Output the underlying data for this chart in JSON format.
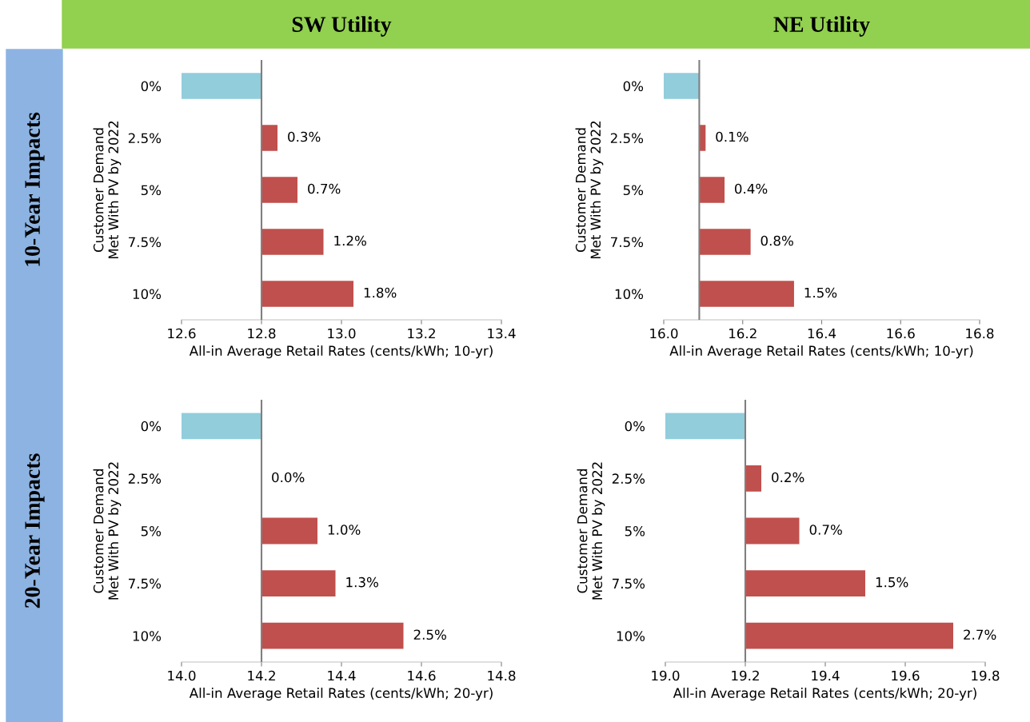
{
  "chart_data": [
    {
      "type": "bar",
      "orientation": "horizontal",
      "title": "SW Utility",
      "ylabel": "Customer Demand\nMet With PV by 2022",
      "xlabel": "All-in Average Retail Rates (cents/kWh; 10-yr)",
      "categories": [
        "0%",
        "2.5%",
        "5%",
        "7.5%",
        "10%"
      ],
      "base": [
        12.6,
        12.8,
        12.8,
        12.8,
        12.8
      ],
      "values": [
        0.2,
        0.04,
        0.09,
        0.155,
        0.23
      ],
      "colors": [
        "#92cddc",
        "#c0504d",
        "#c0504d",
        "#c0504d",
        "#c0504d"
      ],
      "annotations": [
        "10-Year Impacts",
        {
          "text": "0.3%",
          "x": 12.84,
          "y": "2.5%"
        },
        {
          "text": "0.7%",
          "x": 12.89,
          "y": "5%"
        },
        {
          "text": "1.2%",
          "x": 12.955,
          "y": "7.5%"
        },
        {
          "text": "1.8%",
          "x": 13.03,
          "y": "10%"
        }
      ],
      "xlim": [
        12.6,
        13.4
      ],
      "xticks": [
        {
          "value": 12.6,
          "label": "12.6"
        },
        {
          "value": 12.8,
          "label": "12.8"
        },
        {
          "value": 13.0,
          "label": "13.0"
        },
        {
          "value": 13.2,
          "label": "13.2"
        },
        {
          "value": 13.4,
          "label": "13.4"
        }
      ],
      "ref_lines": [
        {
          "axis": "x",
          "value": 12.8,
          "color": "#7f7f7f"
        }
      ]
    },
    {
      "type": "bar",
      "orientation": "horizontal",
      "title": "NE Utility",
      "ylabel": "Customer Demand\nMet With PV by 2022",
      "xlabel": "All-in Average Retail Rates (cents/kWh; 10-yr)",
      "categories": [
        "0%",
        "2.5%",
        "5%",
        "7.5%",
        "10%"
      ],
      "base": [
        16.0,
        16.09,
        16.09,
        16.09,
        16.09
      ],
      "values": [
        0.09,
        0.016,
        0.064,
        0.13,
        0.24
      ],
      "colors": [
        "#92cddc",
        "#c0504d",
        "#c0504d",
        "#c0504d",
        "#c0504d"
      ],
      "annotations": [
        {
          "text": "0.1%",
          "x": 16.106,
          "y": "2.5%"
        },
        {
          "text": "0.4%",
          "x": 16.154,
          "y": "5%"
        },
        {
          "text": "0.8%",
          "x": 16.22,
          "y": "7.5%"
        },
        {
          "text": "1.5%",
          "x": 16.33,
          "y": "10%"
        }
      ],
      "xlim": [
        16.0,
        16.8
      ],
      "xticks": [
        {
          "value": 16.0,
          "label": "16.0"
        },
        {
          "value": 16.2,
          "label": "16.2"
        },
        {
          "value": 16.4,
          "label": "16.4"
        },
        {
          "value": 16.6,
          "label": "16.6"
        },
        {
          "value": 16.8,
          "label": "16.8"
        }
      ],
      "ref_lines": [
        {
          "axis": "x",
          "value": 16.09,
          "color": "#7f7f7f"
        }
      ]
    },
    {
      "type": "bar",
      "orientation": "horizontal",
      "ylabel": "Customer Demand\nMet With PV by 2022",
      "xlabel": "All-in Average Retail Rates (cents/kWh; 20-yr)",
      "categories": [
        "0%",
        "2.5%",
        "5%",
        "7.5%",
        "10%"
      ],
      "base": [
        14.0,
        null,
        14.2,
        14.2,
        14.2
      ],
      "values": [
        0.2,
        null,
        0.14,
        0.185,
        0.355
      ],
      "colors": [
        "#92cddc",
        "#c0504d",
        "#c0504d",
        "#c0504d",
        "#c0504d"
      ],
      "annotations": [
        "20-Year Impacts",
        {
          "text": "0.0%",
          "x": 14.2,
          "y": "2.5%"
        },
        {
          "text": "1.0%",
          "x": 14.34,
          "y": "5%"
        },
        {
          "text": "1.3%",
          "x": 14.385,
          "y": "7.5%"
        },
        {
          "text": "2.5%",
          "x": 14.555,
          "y": "10%"
        }
      ],
      "xlim": [
        14.0,
        14.8
      ],
      "xticks": [
        {
          "value": 14.0,
          "label": "14.0"
        },
        {
          "value": 14.2,
          "label": "14.2"
        },
        {
          "value": 14.4,
          "label": "14.4"
        },
        {
          "value": 14.6,
          "label": "14.6"
        },
        {
          "value": 14.8,
          "label": "14.8"
        }
      ],
      "ref_lines": [
        {
          "axis": "x",
          "value": 14.2,
          "color": "#7f7f7f"
        }
      ]
    },
    {
      "type": "bar",
      "orientation": "horizontal",
      "ylabel": "Customer Demand\nMet With PV by 2022",
      "xlabel": "All-in Average Retail Rates (cents/kWh; 20-yr)",
      "categories": [
        "0%",
        "2.5%",
        "5%",
        "7.5%",
        "10%"
      ],
      "base": [
        19.0,
        19.2,
        19.2,
        19.2,
        19.2
      ],
      "values": [
        0.2,
        0.04,
        0.135,
        0.3,
        0.52
      ],
      "colors": [
        "#92cddc",
        "#c0504d",
        "#c0504d",
        "#c0504d",
        "#c0504d"
      ],
      "annotations": [
        {
          "text": "0.2%",
          "x": 19.24,
          "y": "2.5%"
        },
        {
          "text": "0.7%",
          "x": 19.335,
          "y": "5%"
        },
        {
          "text": "1.5%",
          "x": 19.5,
          "y": "7.5%"
        },
        {
          "text": "2.7%",
          "x": 19.72,
          "y": "10%"
        }
      ],
      "xlim": [
        19.0,
        19.8
      ],
      "xticks": [
        {
          "value": 19.0,
          "label": "19.0"
        },
        {
          "value": 19.2,
          "label": "19.2"
        },
        {
          "value": 19.4,
          "label": "19.4"
        },
        {
          "value": 19.6,
          "label": "19.6"
        },
        {
          "value": 19.8,
          "label": "19.8"
        }
      ],
      "ref_lines": [
        {
          "axis": "x",
          "value": 19.2,
          "color": "#7f7f7f"
        }
      ]
    }
  ]
}
